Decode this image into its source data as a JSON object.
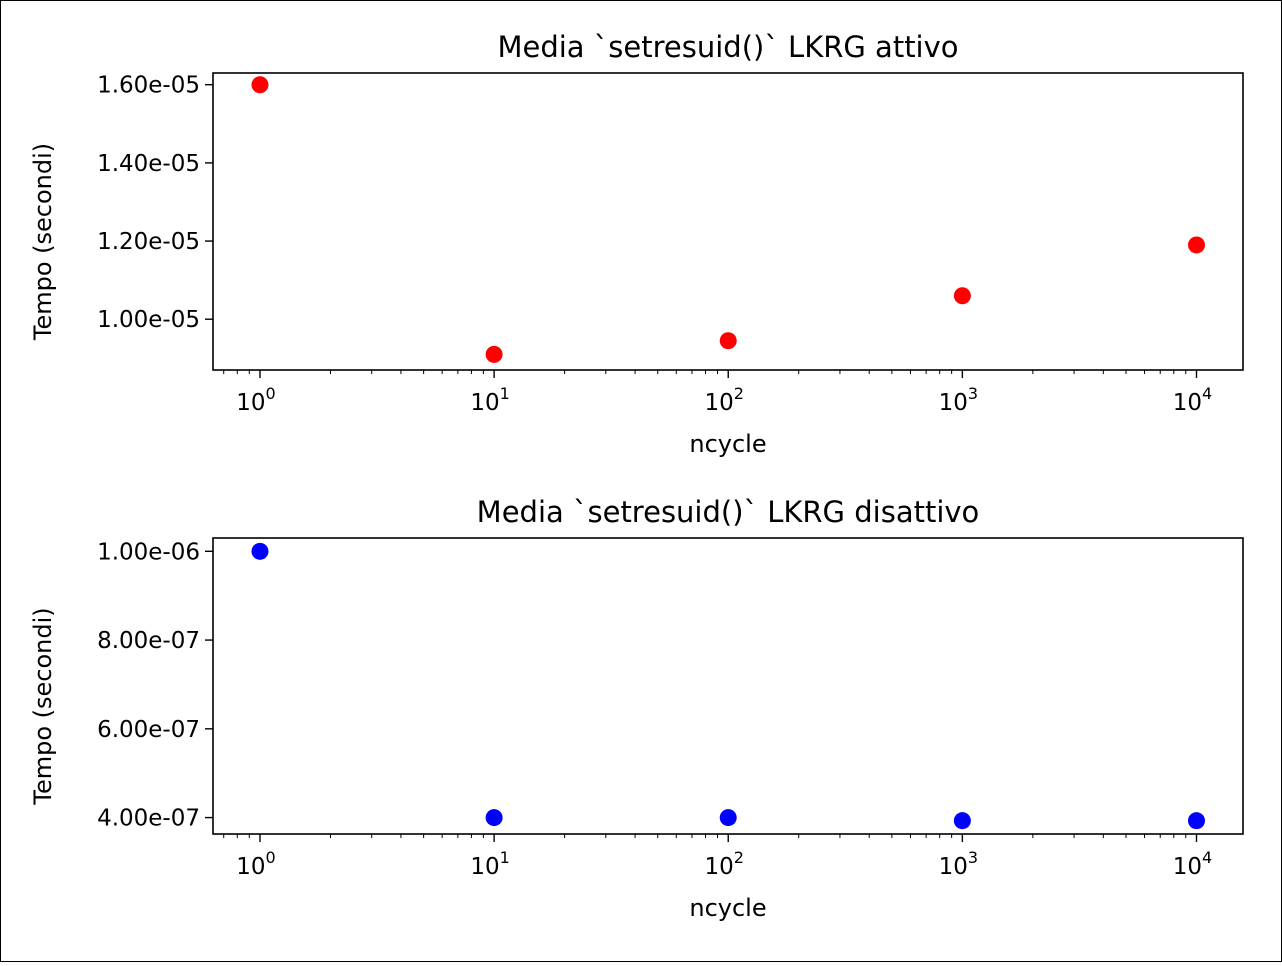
{
  "chart_data": [
    {
      "type": "scatter",
      "title": "Media `setresuid()` LKRG attivo",
      "xlabel": "ncycle",
      "ylabel": "Tempo (secondi)",
      "xscale": "log",
      "xlim": [
        0.63,
        15800
      ],
      "ylim": [
        8.7e-06,
        1.63e-05
      ],
      "x_ticks": [
        {
          "base": "10",
          "exp": "0",
          "value": 1
        },
        {
          "base": "10",
          "exp": "1",
          "value": 10
        },
        {
          "base": "10",
          "exp": "2",
          "value": 100
        },
        {
          "base": "10",
          "exp": "3",
          "value": 1000
        },
        {
          "base": "10",
          "exp": "4",
          "value": 10000
        }
      ],
      "y_ticks": [
        {
          "label": "1.00e-05",
          "value": 1e-05
        },
        {
          "label": "1.20e-05",
          "value": 1.2e-05
        },
        {
          "label": "1.40e-05",
          "value": 1.4e-05
        },
        {
          "label": "1.60e-05",
          "value": 1.6e-05
        }
      ],
      "color": "#ff0000",
      "points": [
        {
          "x": 1,
          "y": 1.6e-05
        },
        {
          "x": 10,
          "y": 9.1e-06
        },
        {
          "x": 100,
          "y": 9.45e-06
        },
        {
          "x": 1000,
          "y": 1.06e-05
        },
        {
          "x": 10000,
          "y": 1.19e-05
        }
      ],
      "grid": false
    },
    {
      "type": "scatter",
      "title": "Media `setresuid()` LKRG disattivo",
      "xlabel": "ncycle",
      "ylabel": "Tempo (secondi)",
      "xscale": "log",
      "xlim": [
        0.63,
        15800
      ],
      "ylim": [
        3.63e-07,
        1.03e-06
      ],
      "x_ticks": [
        {
          "base": "10",
          "exp": "0",
          "value": 1
        },
        {
          "base": "10",
          "exp": "1",
          "value": 10
        },
        {
          "base": "10",
          "exp": "2",
          "value": 100
        },
        {
          "base": "10",
          "exp": "3",
          "value": 1000
        },
        {
          "base": "10",
          "exp": "4",
          "value": 10000
        }
      ],
      "y_ticks": [
        {
          "label": "4.00e-07",
          "value": 4e-07
        },
        {
          "label": "6.00e-07",
          "value": 6e-07
        },
        {
          "label": "8.00e-07",
          "value": 8e-07
        },
        {
          "label": "1.00e-06",
          "value": 1e-06
        }
      ],
      "color": "#0000ff",
      "points": [
        {
          "x": 1,
          "y": 1e-06
        },
        {
          "x": 10,
          "y": 4e-07
        },
        {
          "x": 100,
          "y": 4e-07
        },
        {
          "x": 1000,
          "y": 3.93e-07
        },
        {
          "x": 10000,
          "y": 3.93e-07
        }
      ],
      "grid": false
    }
  ]
}
